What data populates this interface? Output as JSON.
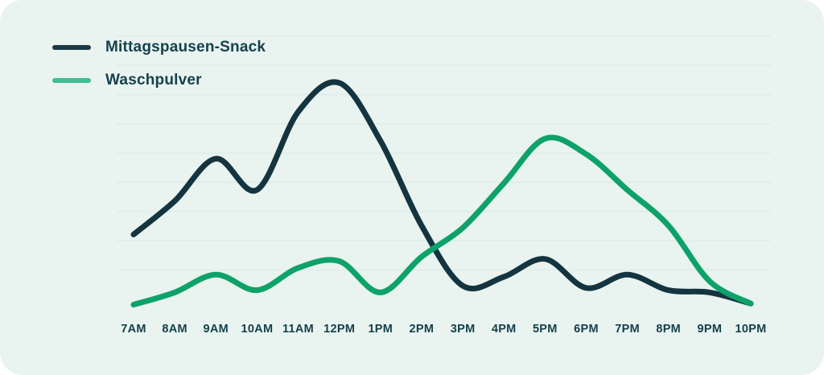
{
  "legend": {
    "items": [
      {
        "label": "Mittagspausen-Snack",
        "swatch_color": "#1d3b45"
      },
      {
        "label": "Waschpulver",
        "swatch_color": "#41bd92"
      }
    ]
  },
  "chart_data": {
    "type": "line",
    "categories": [
      "7AM",
      "8AM",
      "9AM",
      "10AM",
      "11AM",
      "12PM",
      "1PM",
      "2PM",
      "3PM",
      "4PM",
      "5PM",
      "6PM",
      "7PM",
      "8PM",
      "9PM",
      "10PM"
    ],
    "series": [
      {
        "name": "Mittagspausen-Snack",
        "color": "#14343f",
        "values": [
          32,
          47,
          66,
          52,
          87,
          100,
          74,
          36,
          9,
          13,
          21,
          8,
          14,
          7,
          6,
          1
        ]
      },
      {
        "name": "Waschpulver",
        "color": "#0da269",
        "values": [
          0.5,
          6,
          14,
          7,
          17,
          20,
          6,
          22,
          35,
          55,
          75,
          68,
          52,
          36,
          11,
          1
        ]
      }
    ],
    "title": "",
    "xlabel": "",
    "ylabel": "",
    "ylim": [
      0,
      105
    ],
    "grid": "horizontal",
    "gridline_color": "#d9eae5",
    "tick_label_color": "#143f4a",
    "legend_position": "top-left",
    "background": "#e9f3f0"
  }
}
